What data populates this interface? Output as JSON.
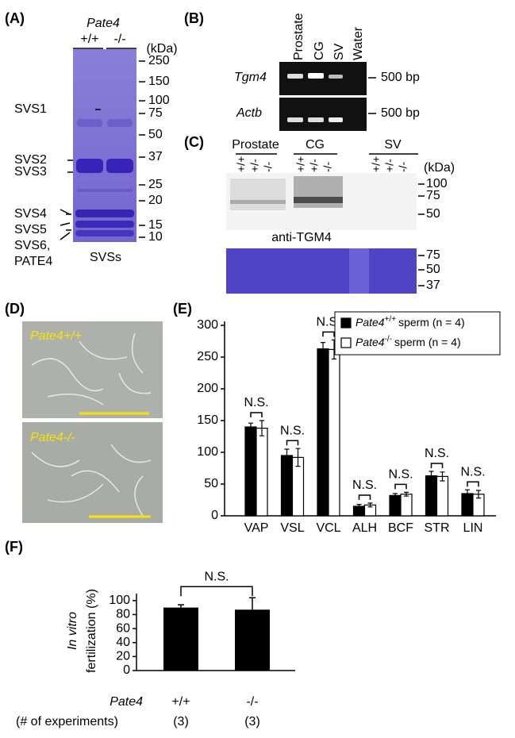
{
  "gel_a": {
    "label": "(A)",
    "gene": "Pate4",
    "genotypes": [
      "+/+",
      "-/-"
    ],
    "unit": "(kDa)",
    "markers": [
      250,
      150,
      100,
      75,
      50,
      37,
      25,
      20,
      15,
      10
    ],
    "bands": [
      "SVS1",
      "SVS2",
      "SVS3",
      "SVS4",
      "SVS5",
      "SVS6,",
      "PATE4"
    ],
    "caption": "SVSs"
  },
  "rt_pcr_b": {
    "label": "(B)",
    "lanes": [
      "Prostate",
      "CG",
      "SV",
      "Water"
    ],
    "genes": [
      "Tgm4",
      "Actb"
    ],
    "size": "500 bp"
  },
  "western_c": {
    "label": "(C)",
    "groups": [
      "Prostate",
      "CG",
      "SV"
    ],
    "genotypes": [
      "+/+",
      "+/-",
      "-/-"
    ],
    "unit": "(kDa)",
    "blot_markers": [
      100,
      75,
      50
    ],
    "antibody": "anti-TGM4",
    "stain_markers": [
      75,
      50,
      37
    ]
  },
  "images_d": {
    "label": "(D)",
    "captions": [
      "Pate4+/+",
      "Pate4-/-"
    ]
  },
  "chart_data": [
    {
      "type": "bar",
      "label": "(E)",
      "categories": [
        "VAP",
        "VSL",
        "VCL",
        "ALH",
        "BCF",
        "STR",
        "LIN"
      ],
      "series": [
        {
          "name": "Pate4",
          "superscript": "+/+",
          "suffix": "sperm (n = 4)",
          "color": "#000000",
          "values": [
            140,
            95,
            263,
            15,
            32,
            63,
            35
          ],
          "errors": [
            6,
            10,
            10,
            3,
            3,
            7,
            6
          ]
        },
        {
          "name": "Pate4",
          "superscript": "-/-",
          "suffix": "sperm (n = 4)",
          "color": "#ffffff",
          "values": [
            138,
            92,
            262,
            17,
            34,
            62,
            34
          ],
          "errors": [
            12,
            14,
            15,
            3,
            3,
            7,
            6
          ]
        }
      ],
      "ylim": [
        0,
        300
      ],
      "yticks": [
        0,
        50,
        100,
        150,
        200,
        250,
        300
      ],
      "annotation": "N.S.",
      "legend": "upper right"
    },
    {
      "type": "bar",
      "label": "(F)",
      "ylabel_prefix": "In vitro",
      "ylabel": "fertilization  (%)",
      "categories": [
        "+/+",
        "-/-"
      ],
      "values": [
        90,
        87
      ],
      "errors": [
        4,
        17
      ],
      "color": "#000000",
      "ylim": [
        0,
        110
      ],
      "yticks": [
        0,
        20,
        40,
        60,
        80,
        100
      ],
      "annotation": "N.S.",
      "group_label": "Pate4",
      "count_label": "(# of experiments)",
      "counts": [
        "(3)",
        "(3)"
      ]
    }
  ]
}
